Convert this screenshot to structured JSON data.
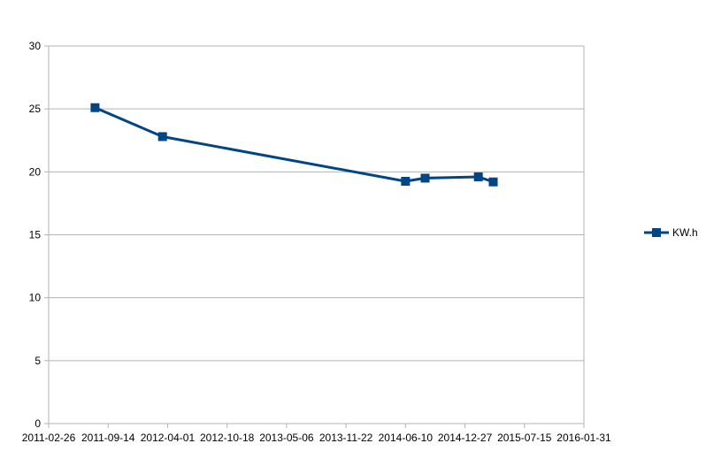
{
  "chart_data": {
    "type": "line",
    "title": "",
    "xlabel": "",
    "ylabel": "",
    "x_type": "date",
    "xlim": [
      "2011-02-26",
      "2016-01-31"
    ],
    "ylim": [
      0,
      30
    ],
    "x_ticks": [
      "2011-02-26",
      "2011-09-14",
      "2012-04-01",
      "2012-10-18",
      "2013-05-06",
      "2013-11-22",
      "2014-06-10",
      "2014-12-27",
      "2015-07-15",
      "2016-01-31"
    ],
    "y_ticks": [
      "0",
      "5",
      "10",
      "15",
      "20",
      "25",
      "30"
    ],
    "grid": "horizontal",
    "legend_position": "right",
    "series": [
      {
        "name": "KW.h",
        "color": "#004586",
        "marker": "square",
        "x": [
          "2011-08-01",
          "2012-03-15",
          "2014-06-10",
          "2014-08-15",
          "2015-02-10",
          "2015-04-01"
        ],
        "y": [
          25.1,
          22.8,
          19.25,
          19.5,
          19.6,
          19.2
        ]
      }
    ]
  }
}
